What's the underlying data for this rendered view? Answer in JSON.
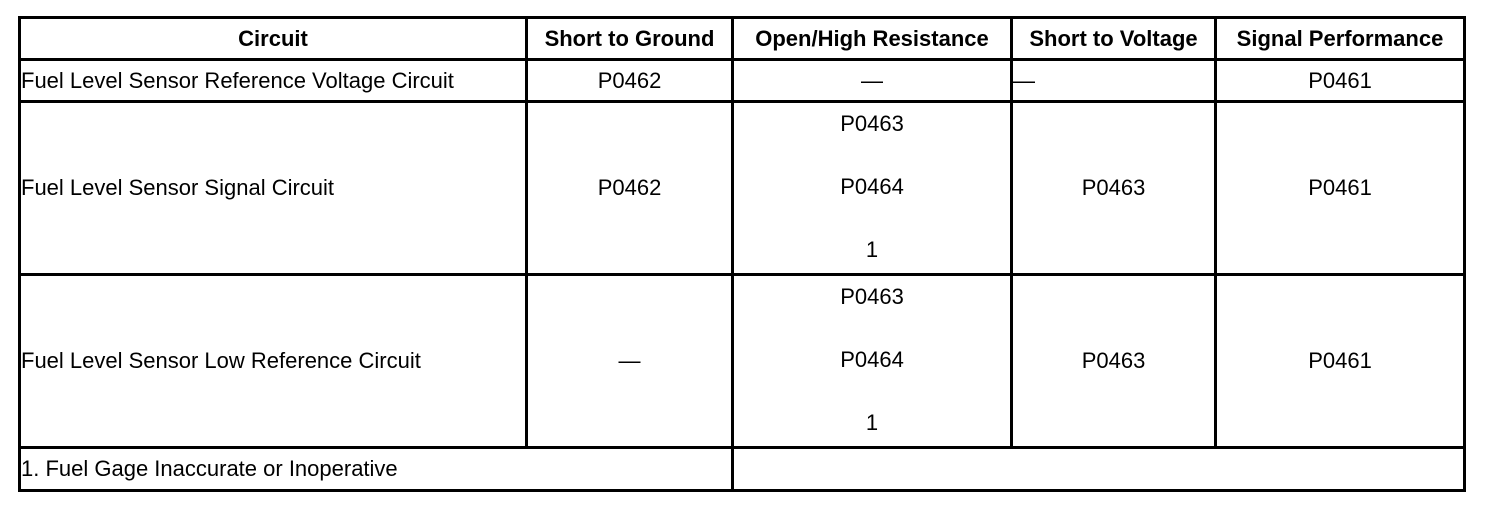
{
  "table": {
    "headers": [
      "Circuit",
      "Short to Ground",
      "Open/High Resistance",
      "Short to Voltage",
      "Signal Performance"
    ],
    "rows": [
      {
        "circuit": "Fuel Level Sensor Reference Voltage Circuit",
        "short_to_ground": "P0462",
        "open_high_resistance": [
          "—"
        ],
        "short_to_voltage": "—",
        "signal_performance": "P0461"
      },
      {
        "circuit": "Fuel Level Sensor Signal Circuit",
        "short_to_ground": "P0462",
        "open_high_resistance": [
          "P0463",
          "P0464",
          "1"
        ],
        "short_to_voltage": "P0463",
        "signal_performance": "P0461"
      },
      {
        "circuit": "Fuel Level Sensor Low Reference Circuit",
        "short_to_ground": "—",
        "open_high_resistance": [
          "P0463",
          "P0464",
          "1"
        ],
        "short_to_voltage": "P0463",
        "signal_performance": "P0461"
      }
    ],
    "footnote": "1. Fuel Gage Inaccurate or Inoperative",
    "footnote_extra": ""
  }
}
